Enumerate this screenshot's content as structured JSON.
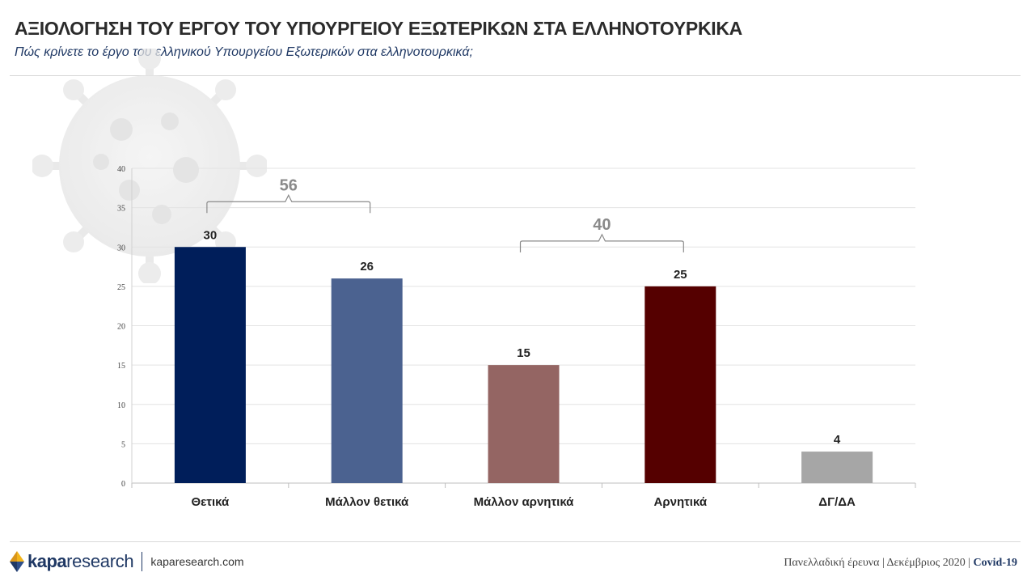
{
  "header": {
    "title": "ΑΞΙΟΛΟΓΗΣΗ ΤΟΥ ΕΡΓΟΥ ΤΟΥ ΥΠΟΥΡΓΕΙΟΥ ΕΞΩΤΕΡΙΚΩΝ ΣΤΑ ΕΛΛΗΝΟΤΟΥΡΚΙΚΑ",
    "subtitle": "Πώς κρίνετε το έργο του ελληνικού Υπουργείου Εξωτερικών στα ελληνοτουρκικά;"
  },
  "chart_data": {
    "type": "bar",
    "categories": [
      "Θετικά",
      "Μάλλον θετικά",
      "Μάλλον αρνητικά",
      "Αρνητικά",
      "ΔΓ/ΔΑ"
    ],
    "values": [
      30,
      26,
      15,
      25,
      4
    ],
    "colors": [
      "#001e5a",
      "#4b6290",
      "#946563",
      "#550000",
      "#a6a6a6"
    ],
    "ylim": [
      0,
      40
    ],
    "yticks": [
      0,
      5,
      10,
      15,
      20,
      25,
      30,
      35,
      40
    ],
    "grid": true,
    "data_labels": true,
    "group_brackets": [
      {
        "label": "56",
        "from_category": 0,
        "to_category": 1
      },
      {
        "label": "40",
        "from_category": 2,
        "to_category": 3
      }
    ]
  },
  "footer": {
    "logo_bold": "kapa",
    "logo_light": "research",
    "site": "kaparesearch.com",
    "source_text": "Πανελλαδική έρευνα | Δεκέμβριος 2020 | ",
    "tag": "Covid-19"
  }
}
